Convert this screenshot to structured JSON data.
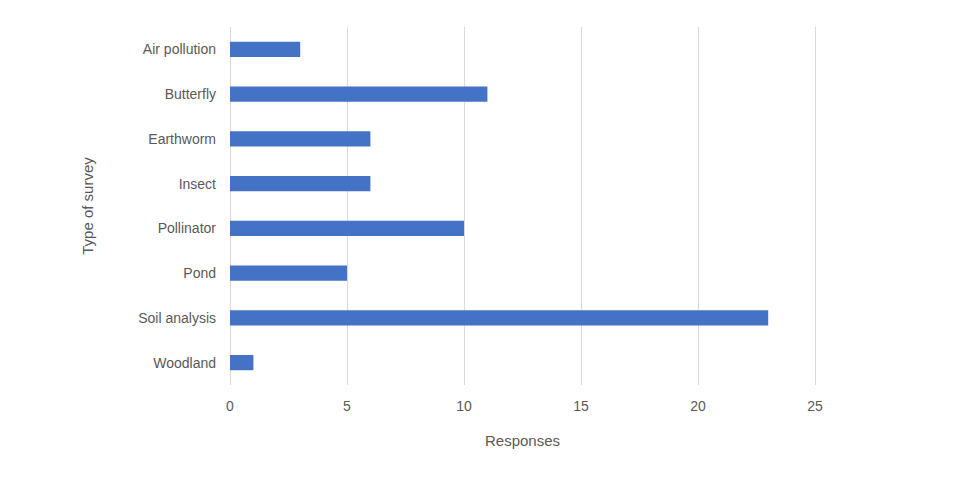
{
  "chart_data": {
    "type": "bar",
    "orientation": "horizontal",
    "xlabel": "Responses",
    "ylabel": "Type of survey",
    "categories": [
      "Air pollution",
      "Butterfly",
      "Earthworm",
      "Insect",
      "Pollinator",
      "Pond",
      "Soil analysis",
      "Woodland"
    ],
    "values": [
      3,
      11,
      6,
      6,
      10,
      5,
      23,
      1
    ],
    "color": "#4472c4",
    "xlim": [
      0,
      25
    ],
    "xticks": [
      0,
      5,
      10,
      15,
      20,
      25
    ],
    "grid": true
  }
}
